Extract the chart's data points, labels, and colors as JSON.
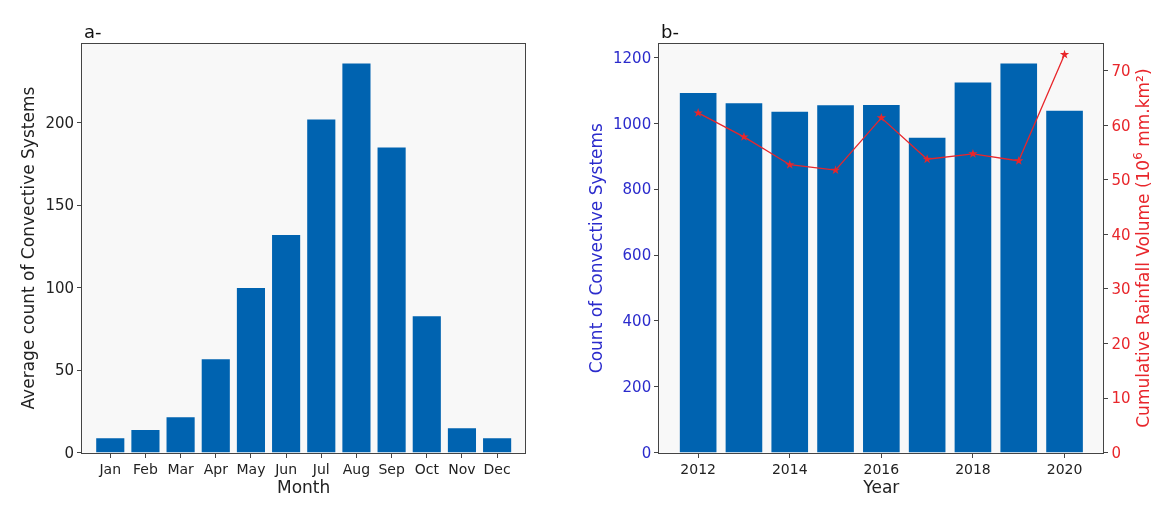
{
  "chart_data": [
    {
      "type": "bar",
      "title": "a-",
      "xlabel": "Month",
      "ylabel": "Average count of Convective Systems",
      "categories": [
        "Jan",
        "Feb",
        "Mar",
        "Apr",
        "May",
        "Jun",
        "Jul",
        "Aug",
        "Sep",
        "Oct",
        "Nov",
        "Dec"
      ],
      "values": [
        8.6,
        13.6,
        21.4,
        56.6,
        99.8,
        132,
        202,
        236,
        185,
        82.7,
        14.7,
        8.6
      ],
      "color": "#0063b0",
      "ylim": [
        0,
        248
      ],
      "yticks": [
        0,
        50,
        100,
        150,
        200
      ],
      "grid": false
    },
    {
      "type": "bar",
      "title": "b-",
      "xlabel": "Year",
      "ylabel": "Count of Convective Systems",
      "y2label": "Cumulative Rainfall Volume (10$^{6}$ mm.km²)",
      "x": [
        2012,
        2013,
        2014,
        2015,
        2016,
        2017,
        2018,
        2019,
        2020
      ],
      "series": [
        {
          "type": "bar",
          "color": "#0063b0",
          "values": [
            1092,
            1061,
            1035,
            1055,
            1056,
            956,
            1124,
            1182,
            1038
          ]
        },
        {
          "type": "line",
          "axis": "y2",
          "color": "#e8262b",
          "marker": "star",
          "values": [
            62.3,
            57.9,
            52.8,
            51.8,
            61.4,
            53.8,
            54.8,
            53.5,
            73.0
          ]
        }
      ],
      "xlim": [
        2011.15,
        2020.85
      ],
      "xticks": [
        2012,
        2014,
        2016,
        2018,
        2020
      ],
      "ylim": [
        0,
        1242
      ],
      "yticks": [
        0,
        200,
        400,
        600,
        800,
        1000,
        1200
      ],
      "y2lim": [
        0,
        75
      ],
      "y2ticks": [
        0,
        10,
        20,
        30,
        40,
        50,
        60,
        70
      ],
      "grid": false
    }
  ]
}
